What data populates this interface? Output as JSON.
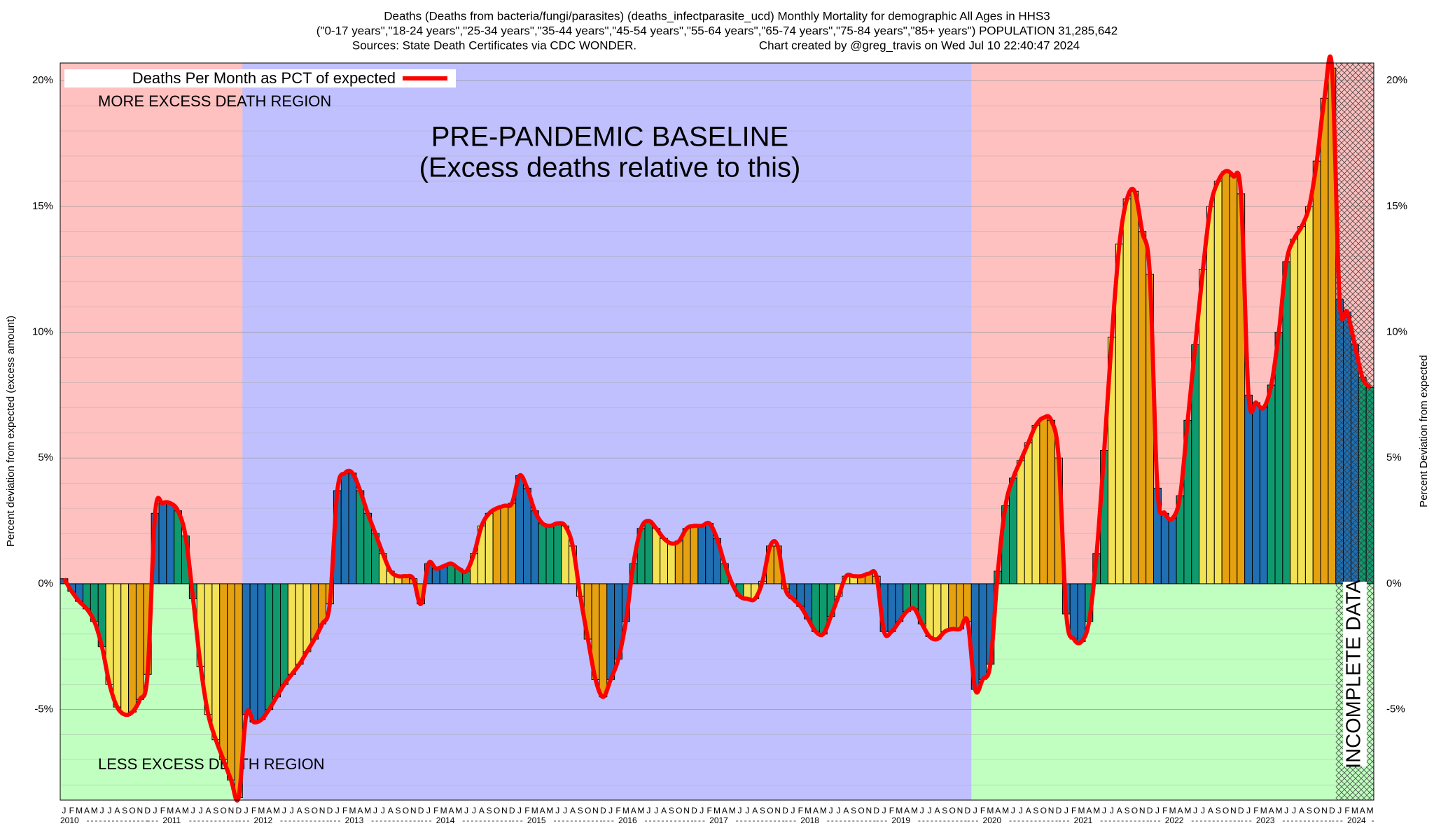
{
  "chart_data": {
    "type": "bar",
    "title": [
      "Deaths (Deaths from bacteria/fungi/parasites) (deaths_infectparasite_ucd) Monthly Mortality for demographic All Ages in HHS3",
      "(\"0-17 years\",\"18-24 years\",\"25-34 years\",\"35-44 years\",\"45-54 years\",\"55-64 years\",\"65-74 years\",\"75-84 years\",\"85+ years\") POPULATION 31,285,642"
    ],
    "subtitle": [
      "Sources: State Death Certificates via CDC WONDER.",
      "Chart created by @greg_travis on Wed Jul 10 22:40:47 2024"
    ],
    "y_label": "Percent deviation from expected (excess amount)",
    "y2_label": "Percent Deviation from expected",
    "months": [
      "J",
      "F",
      "M",
      "A",
      "M",
      "J",
      "J",
      "A",
      "S",
      "O",
      "N",
      "D"
    ],
    "years": [
      "2010",
      "2011",
      "2012",
      "2013",
      "2014",
      "2015",
      "2016",
      "2017",
      "2018",
      "2019",
      "2020",
      "2021",
      "2022",
      "2023",
      "2024"
    ],
    "series": [
      {
        "name": "Deaths Per Month as PCT of expected",
        "color": "#ff0000",
        "values": [
          0.2,
          -0.3,
          -0.7,
          -1.0,
          -1.5,
          -2.5,
          -4.0,
          -4.9,
          -5.2,
          -5.1,
          -4.6,
          -3.6,
          2.8,
          3.2,
          3.2,
          2.9,
          1.9,
          -0.6,
          -3.3,
          -5.2,
          -6.2,
          -7.0,
          -7.8,
          -8.5,
          -5.2,
          -5.5,
          -5.4,
          -5.0,
          -4.5,
          -4.0,
          -3.6,
          -3.2,
          -2.7,
          -2.2,
          -1.6,
          -0.8,
          3.7,
          4.4,
          4.4,
          3.7,
          2.8,
          2.0,
          1.2,
          0.5,
          0.3,
          0.3,
          0.2,
          -0.8,
          0.8,
          0.6,
          0.7,
          0.8,
          0.6,
          0.5,
          1.2,
          2.3,
          2.8,
          3.0,
          3.1,
          3.2,
          4.3,
          3.8,
          2.9,
          2.4,
          2.3,
          2.4,
          2.3,
          1.5,
          -0.5,
          -2.2,
          -3.8,
          -4.5,
          -3.8,
          -3.0,
          -1.5,
          0.8,
          2.2,
          2.5,
          2.2,
          1.8,
          1.6,
          1.7,
          2.2,
          2.3,
          2.3,
          2.4,
          1.8,
          0.8,
          0.0,
          -0.5,
          -0.6,
          -0.6,
          0.1,
          1.5,
          1.5,
          -0.2,
          -0.6,
          -0.9,
          -1.4,
          -1.9,
          -2.0,
          -1.3,
          -0.5,
          0.3,
          0.3,
          0.3,
          0.4,
          0.3,
          -1.9,
          -1.9,
          -1.5,
          -1.1,
          -1.0,
          -1.6,
          -2.1,
          -2.2,
          -1.9,
          -1.8,
          -1.8,
          -1.5,
          -4.2,
          -3.8,
          -3.2,
          0.5,
          3.1,
          4.2,
          4.9,
          5.6,
          6.3,
          6.6,
          6.5,
          5.0,
          -1.2,
          -2.2,
          -2.3,
          -1.5,
          1.2,
          5.3,
          9.8,
          13.5,
          15.3,
          15.6,
          14.0,
          12.3,
          3.8,
          2.8,
          2.6,
          3.5,
          6.5,
          9.5,
          12.5,
          15.0,
          16.0,
          16.4,
          16.2,
          15.5,
          7.5,
          7.2,
          7.0,
          7.9,
          10.0,
          12.8,
          13.7,
          14.2,
          15.0,
          16.8,
          19.3,
          20.5,
          11.3,
          10.8,
          9.5,
          8.2,
          7.8
        ]
      }
    ],
    "bar_colors": [
      "#1f6fb2",
      "#0f9a6e",
      "#f3e256",
      "#e5a110"
    ],
    "ylim": [
      -8.6,
      20.7
    ],
    "yticks": [
      {
        "value": -5,
        "label": "-5%"
      },
      {
        "value": 0,
        "label": "0%"
      },
      {
        "value": 5,
        "label": "5%"
      },
      {
        "value": 10,
        "label": "10%"
      },
      {
        "value": 15,
        "label": "15%"
      },
      {
        "value": 20,
        "label": "20%"
      }
    ],
    "minor_yticks": [
      -8,
      -7,
      -6,
      -4,
      -3,
      -2,
      -1,
      1,
      2,
      3,
      4,
      6,
      7,
      8,
      9,
      11,
      12,
      13,
      14,
      16,
      17,
      18,
      19
    ],
    "grid": true,
    "regions": {
      "above": "MORE EXCESS DEATH REGION",
      "below": "LESS EXCESS DEATH REGION",
      "above_color": "#ffc0c0",
      "below_color": "#c0ffc0"
    },
    "baseline": {
      "label": "PRE-PANDEMIC BASELINE",
      "sublabel": "(Excess deaths relative to this)",
      "years": [
        "2012",
        "2019"
      ],
      "color": "#c0c0ff"
    },
    "incomplete": {
      "label": "INCOMPLETE DATA",
      "years": [
        "2024"
      ]
    },
    "legend": "top-left"
  }
}
